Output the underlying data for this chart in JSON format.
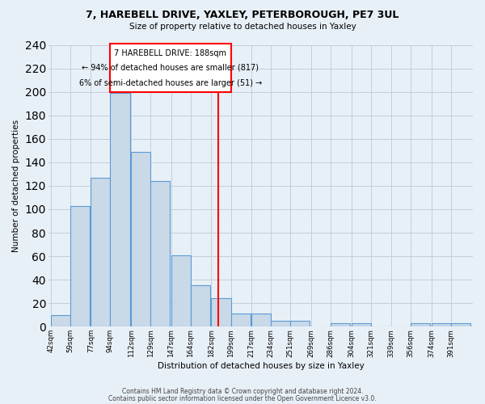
{
  "title_line1": "7, HAREBELL DRIVE, YAXLEY, PETERBOROUGH, PE7 3UL",
  "title_line2": "Size of property relative to detached houses in Yaxley",
  "xlabel": "Distribution of detached houses by size in Yaxley",
  "ylabel": "Number of detached properties",
  "bin_labels": [
    "42sqm",
    "59sqm",
    "77sqm",
    "94sqm",
    "112sqm",
    "129sqm",
    "147sqm",
    "164sqm",
    "182sqm",
    "199sqm",
    "217sqm",
    "234sqm",
    "251sqm",
    "269sqm",
    "286sqm",
    "304sqm",
    "321sqm",
    "339sqm",
    "356sqm",
    "374sqm",
    "391sqm"
  ],
  "bin_edges": [
    42,
    59,
    77,
    94,
    112,
    129,
    147,
    164,
    182,
    199,
    217,
    234,
    251,
    269,
    286,
    304,
    321,
    339,
    356,
    374,
    391
  ],
  "bar_heights": [
    10,
    103,
    127,
    199,
    149,
    124,
    61,
    35,
    24,
    11,
    11,
    5,
    5,
    0,
    3,
    3,
    0,
    0,
    3,
    3,
    3
  ],
  "bar_color": "#c9d9e8",
  "bar_edge_color": "#5b9bd5",
  "vline_x": 188,
  "vline_color": "red",
  "annotation_line1": "7 HAREBELL DRIVE: 188sqm",
  "annotation_line2": "← 94% of detached houses are smaller (817)",
  "annotation_line3": "6% of semi-detached houses are larger (51) →",
  "ylim": [
    0,
    240
  ],
  "yticks": [
    0,
    20,
    40,
    60,
    80,
    100,
    120,
    140,
    160,
    180,
    200,
    220,
    240
  ],
  "grid_color": "#c0cedb",
  "background_color": "#e8f0f7",
  "footer_line1": "Contains HM Land Registry data © Crown copyright and database right 2024.",
  "footer_line2": "Contains public sector information licensed under the Open Government Licence v3.0."
}
